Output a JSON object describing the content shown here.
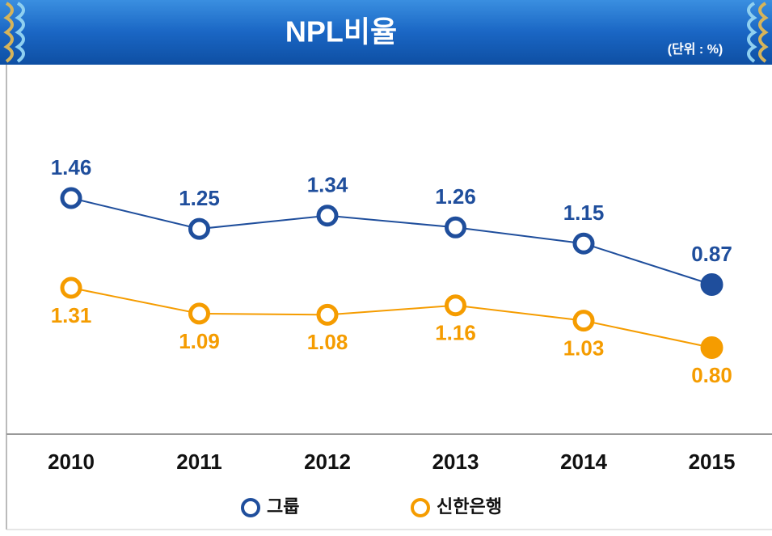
{
  "chart_data": {
    "type": "line",
    "title": "NPL비율",
    "subtitle": "(단위 : %)",
    "categories": [
      "2010",
      "2011",
      "2012",
      "2013",
      "2014",
      "2015"
    ],
    "series": [
      {
        "name": "그룹",
        "color": "#1f4e9c",
        "values": [
          1.46,
          1.25,
          1.34,
          1.26,
          1.15,
          0.87
        ],
        "value_labels": [
          "1.46",
          "1.25",
          "1.34",
          "1.26",
          "1.15",
          "0.87"
        ]
      },
      {
        "name": "신한은행",
        "color": "#f59c00",
        "values": [
          1.31,
          1.09,
          1.08,
          1.16,
          1.03,
          0.8
        ],
        "value_labels": [
          "1.31",
          "1.09",
          "1.08",
          "1.16",
          "1.03",
          "0.80"
        ]
      }
    ]
  }
}
